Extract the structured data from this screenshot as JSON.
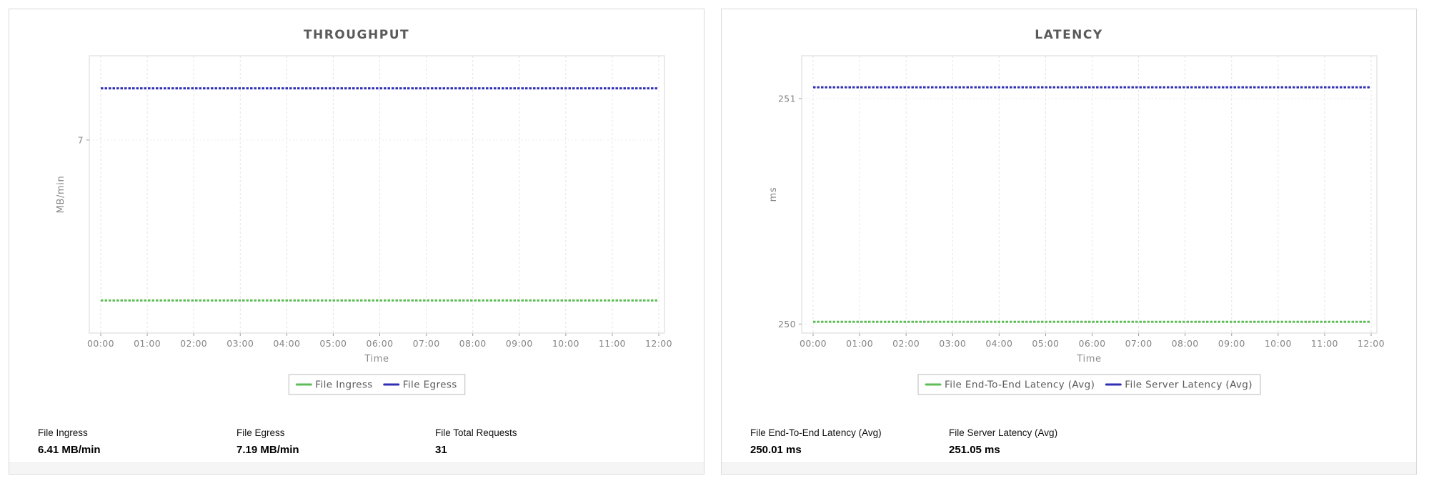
{
  "chart_data": [
    {
      "type": "line",
      "title": "THROUGHPUT",
      "x": [
        "00:00",
        "01:00",
        "02:00",
        "03:00",
        "04:00",
        "05:00",
        "06:00",
        "07:00",
        "08:00",
        "09:00",
        "10:00",
        "11:00",
        "12:00"
      ],
      "xlabel": "Time",
      "ylabel": "MB/min",
      "ylim": [
        6.29,
        7.31
      ],
      "y_ticks": [
        {
          "value": 7,
          "label": "7"
        }
      ],
      "grid": true,
      "legend_position": "bottom",
      "series": [
        {
          "name": "File Ingress",
          "value": 6.41,
          "constant": true,
          "color": "#5fbd58"
        },
        {
          "name": "File Egress",
          "value": 7.19,
          "constant": true,
          "color": "#3030b5"
        }
      ]
    },
    {
      "type": "line",
      "title": "LATENCY",
      "x": [
        "00:00",
        "01:00",
        "02:00",
        "03:00",
        "04:00",
        "05:00",
        "06:00",
        "07:00",
        "08:00",
        "09:00",
        "10:00",
        "11:00",
        "12:00"
      ],
      "xlabel": "Time",
      "ylabel": "ms",
      "ylim": [
        249.96,
        251.19
      ],
      "y_ticks": [
        {
          "value": 251,
          "label": "251"
        },
        {
          "value": 250,
          "label": "250"
        }
      ],
      "grid": true,
      "legend_position": "bottom",
      "series": [
        {
          "name": "File End-To-End Latency (Avg)",
          "value": 250.01,
          "constant": true,
          "color": "#5fbd58"
        },
        {
          "name": "File Server Latency (Avg)",
          "value": 251.05,
          "constant": true,
          "color": "#3030b5"
        }
      ]
    }
  ],
  "panels": [
    {
      "stats": [
        {
          "label": "File Ingress",
          "value": "6.41 MB/min"
        },
        {
          "label": "File Egress",
          "value": "7.19 MB/min"
        },
        {
          "label": "File Total Requests",
          "value": "31"
        }
      ]
    },
    {
      "stats": [
        {
          "label": "File End-To-End Latency (Avg)",
          "value": "250.01 ms"
        },
        {
          "label": "File Server Latency (Avg)",
          "value": "251.05 ms"
        }
      ]
    }
  ],
  "colors": {
    "series_green": "#5fbd58",
    "series_blue": "#3030b5",
    "title_text": "#5a5a5a",
    "axis_text": "#858585"
  }
}
